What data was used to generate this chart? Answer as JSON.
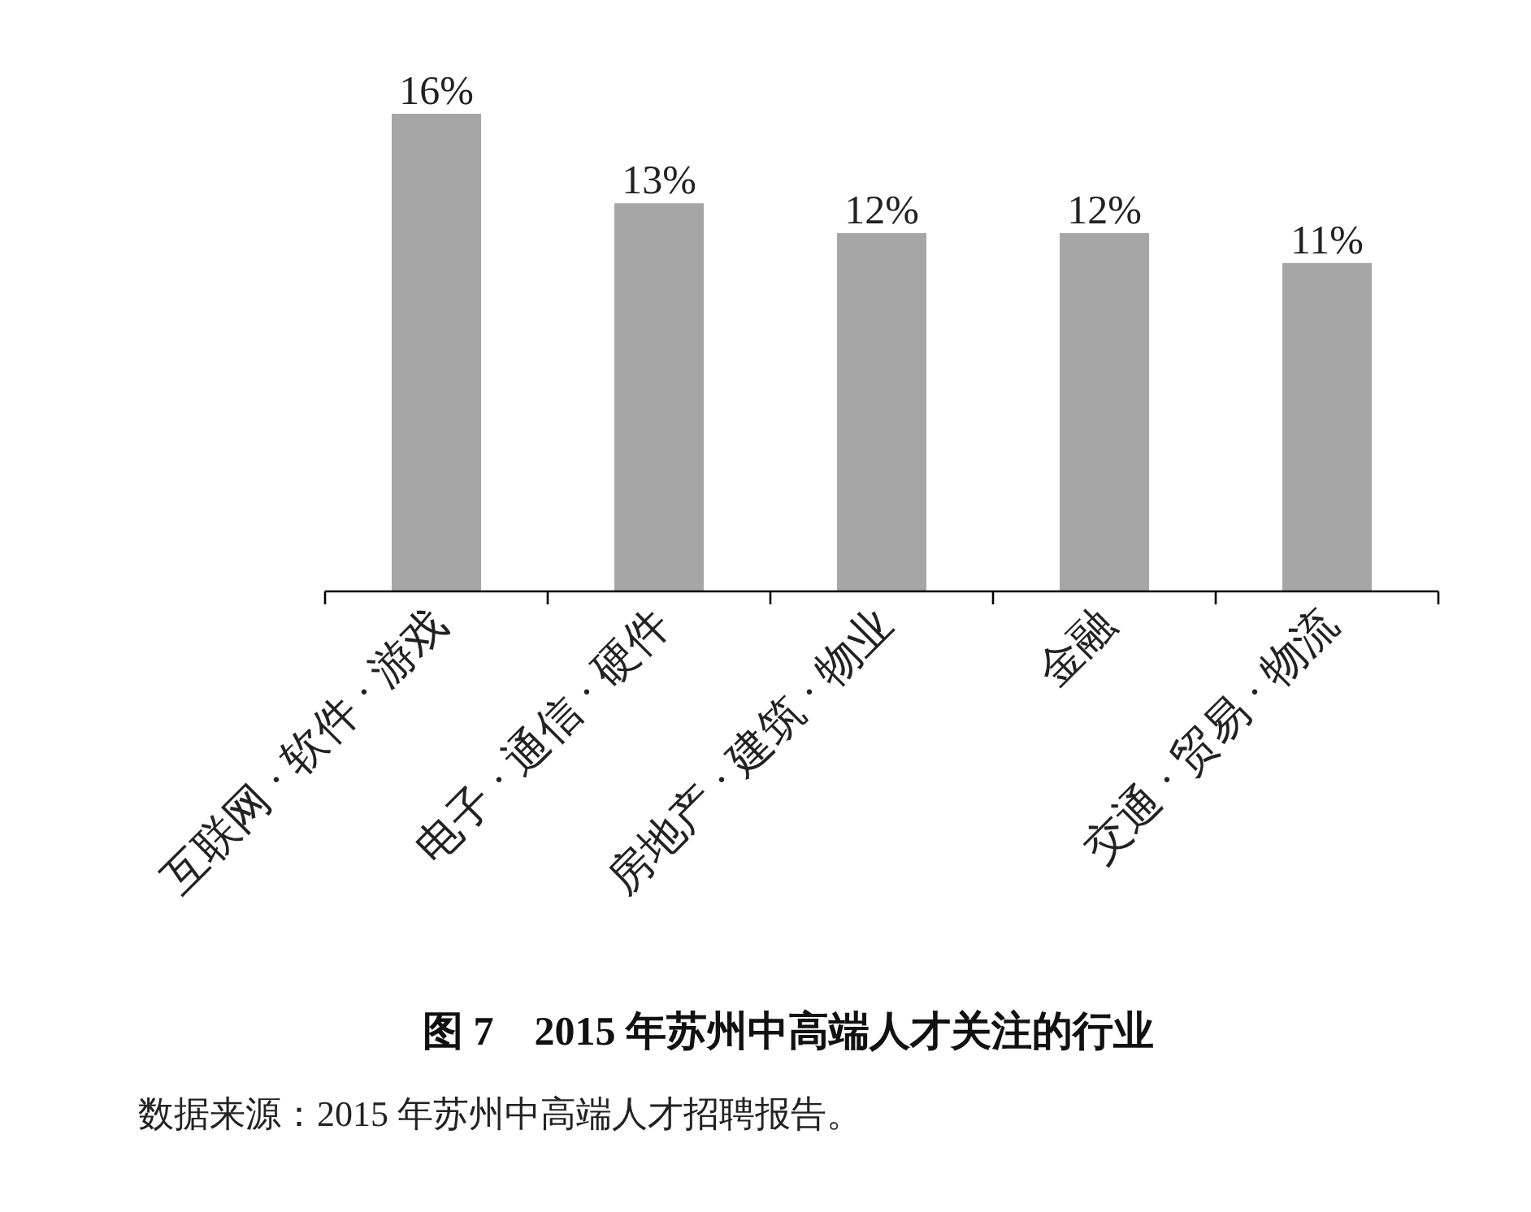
{
  "chart_data": {
    "type": "bar",
    "title": "图 7　2015 年苏州中高端人才关注的行业",
    "categories": [
      "互联网 · 软件 · 游戏",
      "电子 · 通信 · 硬件",
      "房地产 · 建筑 · 物业",
      "金融",
      "交通 · 贸易 · 物流"
    ],
    "values": [
      16,
      13,
      12,
      12,
      11
    ],
    "value_labels": [
      "16%",
      "13%",
      "12%",
      "12%",
      "11%"
    ],
    "color": "#a6a6a6",
    "annotations": [
      "数据来源：2015 年苏州中高端人才招聘报告。"
    ]
  }
}
